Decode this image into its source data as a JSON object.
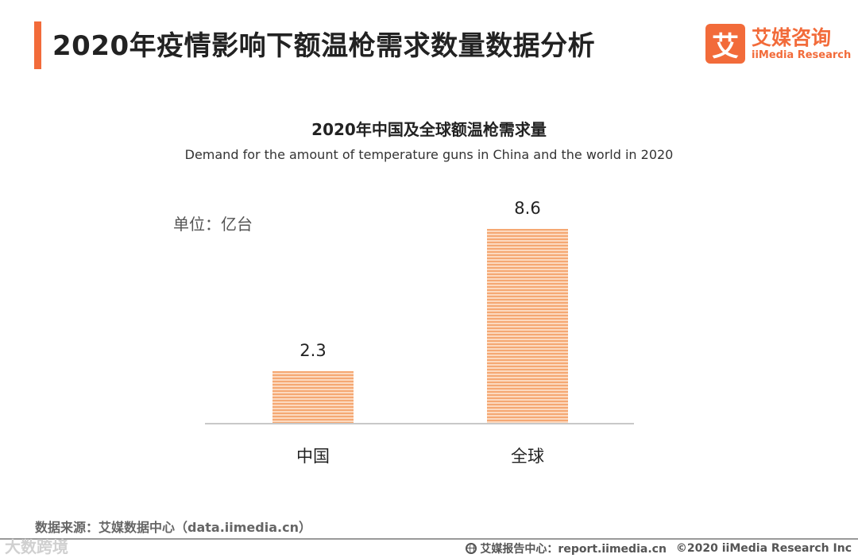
{
  "header": {
    "title": "2020年疫情影响下额温枪需求数量数据分析",
    "logo_mark": "艾",
    "logo_cn": "艾媒咨询",
    "logo_en": "iiMedia Research",
    "accent_color": "#f26b3a"
  },
  "chart_data": {
    "type": "bar",
    "title": "2020年中国及全球额温枪需求量",
    "subtitle": "Demand for the amount of temperature guns in China and the world in 2020",
    "unit": "单位：亿台",
    "categories": [
      "中国",
      "全球"
    ],
    "values": [
      2.3,
      8.6
    ],
    "value_labels": [
      "2.3",
      "8.6"
    ],
    "ylim": [
      0,
      9
    ],
    "grid": false,
    "bar_color": "#f5a873"
  },
  "footer": {
    "source": "数据来源：艾媒数据中心（data.iimedia.cn）",
    "watermark": "大数跨境",
    "report_center": "艾媒报告中心：report.iimedia.cn",
    "copyright": "©2020  iiMedia Research  Inc"
  }
}
